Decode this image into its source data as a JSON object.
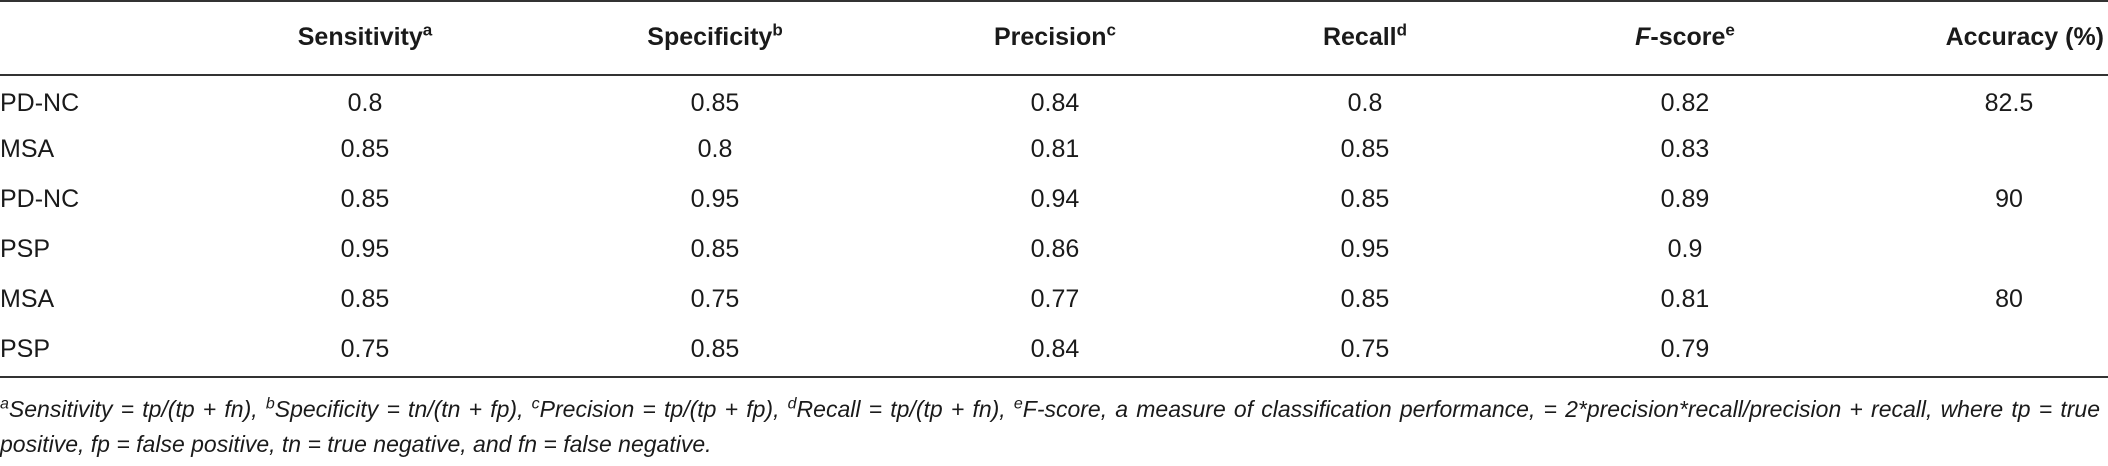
{
  "table": {
    "columns": [
      {
        "label": "",
        "sup": ""
      },
      {
        "label": "Sensitivity",
        "sup": "a",
        "italic": false
      },
      {
        "label": "Specificity",
        "sup": "b",
        "italic": false
      },
      {
        "label": "Precision",
        "sup": "c",
        "italic": false
      },
      {
        "label": "Recall",
        "sup": "d",
        "italic": false
      },
      {
        "label_italic": "F",
        "label_rest": "-score",
        "sup": "e"
      },
      {
        "label": "Accuracy (%)",
        "sup": ""
      }
    ],
    "rows": [
      {
        "group": "PD-NC",
        "sensitivity": "0.8",
        "specificity": "0.85",
        "precision": "0.84",
        "recall": "0.8",
        "fscore": "0.82",
        "accuracy": "82.5"
      },
      {
        "group": "MSA",
        "sensitivity": "0.85",
        "specificity": "0.8",
        "precision": "0.81",
        "recall": "0.85",
        "fscore": "0.83",
        "accuracy": ""
      },
      {
        "group": "PD-NC",
        "sensitivity": "0.85",
        "specificity": "0.95",
        "precision": "0.94",
        "recall": "0.85",
        "fscore": "0.89",
        "accuracy": "90"
      },
      {
        "group": "PSP",
        "sensitivity": "0.95",
        "specificity": "0.85",
        "precision": "0.86",
        "recall": "0.95",
        "fscore": "0.9",
        "accuracy": ""
      },
      {
        "group": "MSA",
        "sensitivity": "0.85",
        "specificity": "0.75",
        "precision": "0.77",
        "recall": "0.85",
        "fscore": "0.81",
        "accuracy": "80"
      },
      {
        "group": "PSP",
        "sensitivity": "0.75",
        "specificity": "0.85",
        "precision": "0.84",
        "recall": "0.75",
        "fscore": "0.79",
        "accuracy": ""
      }
    ]
  },
  "footnotes": {
    "a_sup": "a",
    "a_text": "Sensitivity = tp/(tp + fn), ",
    "b_sup": "b",
    "b_text": "Specificity = tn/(tn + fp), ",
    "c_sup": "c",
    "c_text": "Precision = tp/(tp + fp), ",
    "d_sup": "d",
    "d_text": "Recall = tp/(tp + fn), ",
    "e_sup": "e",
    "e_text": "F-score, a measure of classification performance, = 2*precision*recall/precision + recall, where tp = true positive, fp = false positive, tn = true negative, and fn = false negative."
  }
}
